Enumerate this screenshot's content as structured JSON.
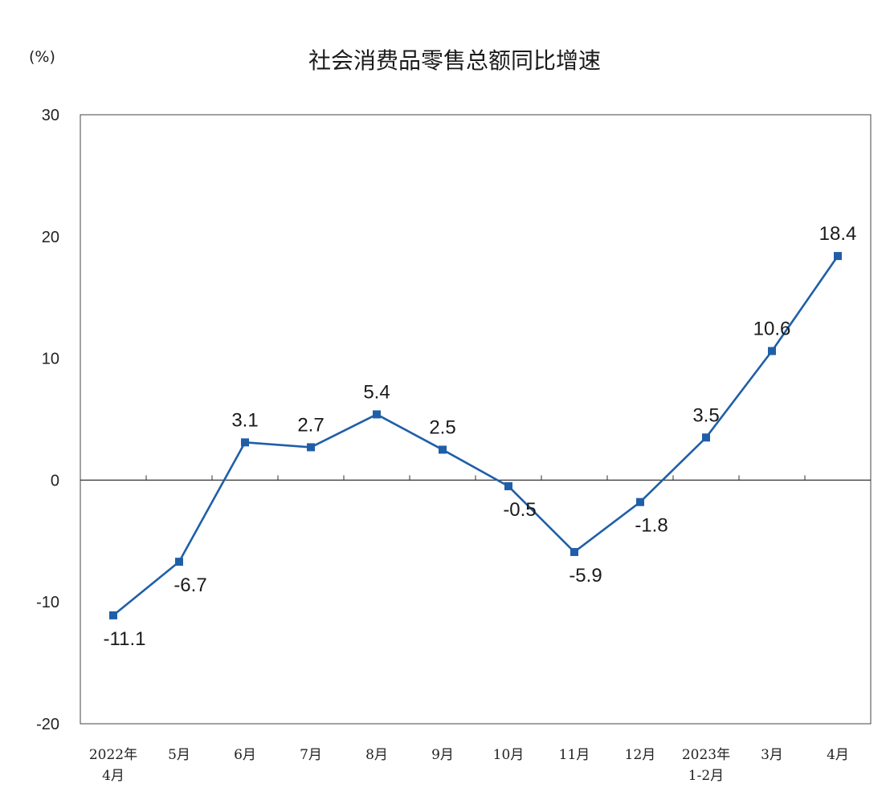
{
  "chart_data": {
    "type": "line",
    "title": "社会消费品零售总额同比增速",
    "unit": "(%)",
    "categories": [
      [
        "2022年",
        "4月"
      ],
      [
        "5月"
      ],
      [
        "6月"
      ],
      [
        "7月"
      ],
      [
        "8月"
      ],
      [
        "9月"
      ],
      [
        "10月"
      ],
      [
        "11月"
      ],
      [
        "12月"
      ],
      [
        "2023年",
        "1-2月"
      ],
      [
        "3月"
      ],
      [
        "4月"
      ]
    ],
    "series": [
      {
        "values": [
          -11.1,
          -6.7,
          3.1,
          2.7,
          5.4,
          2.5,
          -0.5,
          -5.9,
          -1.8,
          3.5,
          10.6,
          18.4
        ],
        "labels": [
          "-11.1",
          "-6.7",
          "3.1",
          "2.7",
          "5.4",
          "2.5",
          "-0.5",
          "-5.9",
          "-1.8",
          "3.5",
          "10.6",
          "18.4"
        ],
        "label_side": [
          "below",
          "below",
          "above",
          "above",
          "above",
          "above",
          "below",
          "below",
          "below",
          "above",
          "above",
          "above"
        ],
        "color": "#1f5fa8"
      }
    ],
    "ylim": [
      -20,
      30
    ],
    "yticks": [
      30,
      20,
      10,
      0,
      -10,
      -20
    ],
    "ytick_labels": [
      "30",
      "20",
      "10",
      "0",
      "-10",
      "-20"
    ],
    "grid": false,
    "legend": "none"
  }
}
